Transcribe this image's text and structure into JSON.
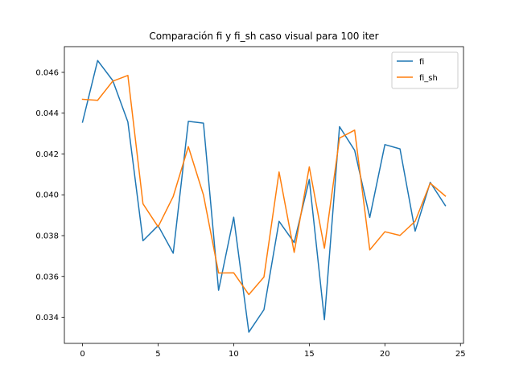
{
  "chart_data": {
    "type": "line",
    "title": "Comparación fi y fi_sh caso visual para 100 iter",
    "xlabel": "",
    "ylabel": "",
    "xlim": [
      -1.2,
      25.2
    ],
    "ylim": [
      0.03272,
      0.04726
    ],
    "xticks": [
      0,
      5,
      10,
      15,
      20,
      25
    ],
    "yticks": [
      0.034,
      0.036,
      0.038,
      0.04,
      0.042,
      0.044,
      0.046
    ],
    "grid": false,
    "legend_position": "top-right",
    "x": [
      0,
      1,
      2,
      3,
      4,
      5,
      6,
      7,
      8,
      9,
      10,
      11,
      12,
      13,
      14,
      15,
      16,
      17,
      18,
      19,
      20,
      21,
      22,
      23,
      24
    ],
    "series": [
      {
        "name": "fi",
        "color": "#1f77b4",
        "values": [
          0.04356,
          0.04658,
          0.0456,
          0.04357,
          0.03775,
          0.03849,
          0.03714,
          0.0436,
          0.04351,
          0.03532,
          0.0389,
          0.03327,
          0.03437,
          0.0387,
          0.03766,
          0.04075,
          0.03388,
          0.04334,
          0.04218,
          0.03889,
          0.04246,
          0.04225,
          0.03822,
          0.04061,
          0.03947
        ]
      },
      {
        "name": "fi_sh",
        "color": "#ff7f0e",
        "values": [
          0.04468,
          0.04463,
          0.04557,
          0.04585,
          0.03956,
          0.03843,
          0.03992,
          0.04236,
          0.03999,
          0.03617,
          0.03618,
          0.03511,
          0.03597,
          0.04112,
          0.03718,
          0.04137,
          0.03738,
          0.04278,
          0.04317,
          0.0373,
          0.03819,
          0.03801,
          0.0387,
          0.04057,
          0.03994
        ]
      }
    ]
  }
}
